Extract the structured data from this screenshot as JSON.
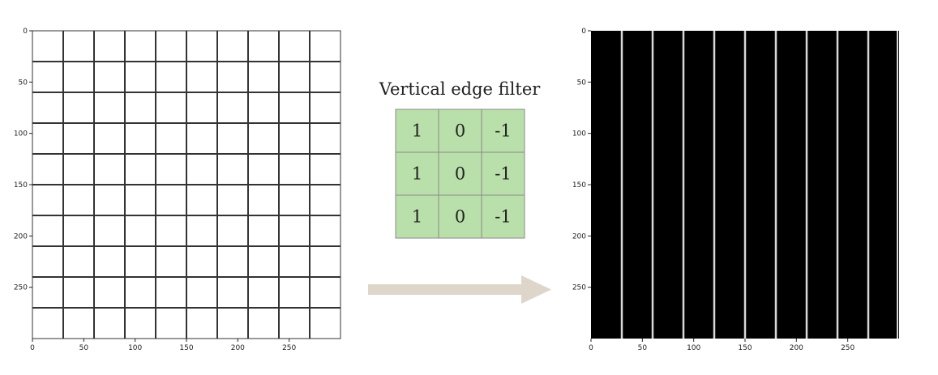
{
  "filter": {
    "title": "Vertical edge filter",
    "kernel": [
      [
        "1",
        "0",
        "-1"
      ],
      [
        "1",
        "0",
        "-1"
      ],
      [
        "1",
        "0",
        "-1"
      ]
    ],
    "cell_color": "#b9e0aa",
    "border_color": "#8a8a8a"
  },
  "input_image": {
    "x_ticks": [
      "0",
      "50",
      "100",
      "150",
      "200",
      "250"
    ],
    "y_ticks": [
      "0",
      "50",
      "100",
      "150",
      "200",
      "250"
    ],
    "x_range": [
      0,
      300
    ],
    "y_range": [
      0,
      300
    ],
    "grid_spacing": 30,
    "background": "#ffffff",
    "line_color": "#333333"
  },
  "output_image": {
    "x_ticks": [
      "0",
      "50",
      "100",
      "150",
      "200",
      "250"
    ],
    "y_ticks": [
      "0",
      "50",
      "100",
      "150",
      "200",
      "250"
    ],
    "x_range": [
      0,
      300
    ],
    "y_range": [
      0,
      300
    ],
    "line_spacing": 30,
    "background": "#000000",
    "line_color": "#d8d8d8"
  },
  "arrow": {
    "color": "#ded6cb",
    "icon": "right-arrow-icon"
  }
}
